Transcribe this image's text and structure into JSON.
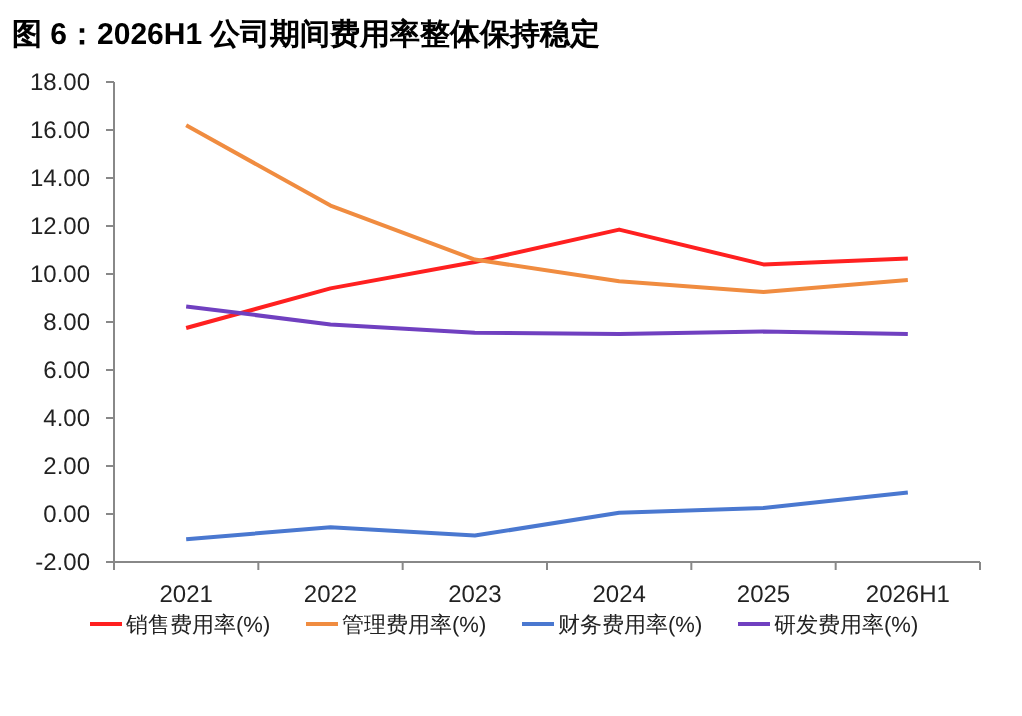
{
  "chart_data": {
    "type": "line",
    "title": "图 6：2026H1 公司期间费用率整体保持稳定",
    "categories": [
      "2021",
      "2022",
      "2023",
      "2024",
      "2025",
      "2026H1"
    ],
    "series": [
      {
        "name": "销售费用率(%)",
        "color": "#ff2020",
        "values": [
          7.75,
          9.4,
          10.5,
          11.85,
          10.4,
          10.65
        ]
      },
      {
        "name": "管理费用率(%)",
        "color": "#f08c40",
        "values": [
          16.2,
          12.85,
          10.6,
          9.7,
          9.25,
          9.75
        ]
      },
      {
        "name": "财务费用率(%)",
        "color": "#4a78d0",
        "values": [
          -1.05,
          -0.55,
          -0.9,
          0.05,
          0.25,
          0.9
        ]
      },
      {
        "name": "研发费用率(%)",
        "color": "#7040c0",
        "values": [
          8.65,
          7.9,
          7.55,
          7.5,
          7.6,
          7.5
        ]
      }
    ],
    "ylim": [
      -2,
      18
    ],
    "yticks": [
      {
        "value": -2,
        "label": "-2.00"
      },
      {
        "value": 0,
        "label": "0.00"
      },
      {
        "value": 2,
        "label": "2.00"
      },
      {
        "value": 4,
        "label": "4.00"
      },
      {
        "value": 6,
        "label": "6.00"
      },
      {
        "value": 8,
        "label": "8.00"
      },
      {
        "value": 10,
        "label": "10.00"
      },
      {
        "value": 12,
        "label": "12.00"
      },
      {
        "value": 14,
        "label": "14.00"
      },
      {
        "value": 16,
        "label": "16.00"
      },
      {
        "value": 18,
        "label": "18.00"
      }
    ],
    "grid": false,
    "legend": "bottom",
    "marker": "none",
    "line_style": "solid"
  }
}
